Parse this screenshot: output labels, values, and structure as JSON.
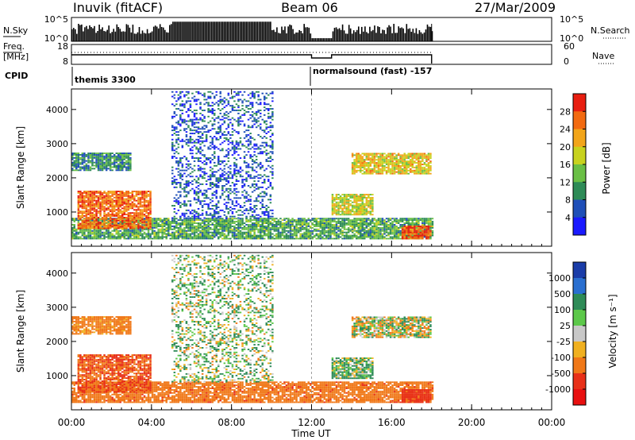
{
  "header": {
    "station": "Inuvik (fitACF)",
    "beam": "Beam 06",
    "date": "27/Mar/2009"
  },
  "sky_panel": {
    "left_label": "N.Sky",
    "right_label": "N.Search",
    "left_ticks": [
      "10^5",
      "10^0"
    ],
    "right_ticks": [
      "10^5",
      "10^0"
    ]
  },
  "freq_panel": {
    "left_label_1": "Freq.",
    "left_label_2": "[MHz]",
    "right_label": "Nave",
    "left_ticks": [
      "18",
      "8"
    ],
    "right_ticks": [
      "60",
      "0"
    ]
  },
  "cpid": {
    "label": "CPID",
    "segments": [
      {
        "text": "themis 3300",
        "start_hour": 0
      },
      {
        "text": "normalsound (fast) -157",
        "start_hour": 12
      }
    ]
  },
  "power_panel": {
    "ylabel": "Slant Range [km]",
    "yticks": [
      "1000",
      "2000",
      "3000",
      "4000"
    ],
    "colorbar_label": "Power [dB]",
    "colorbar_ticks": [
      "4",
      "8",
      "12",
      "16",
      "20",
      "24",
      "28"
    ],
    "colors": [
      "#1a1aff",
      "#1f4fb8",
      "#2e8b57",
      "#6abf45",
      "#c8d21e",
      "#f2a51a",
      "#f26a10",
      "#e81e10"
    ]
  },
  "velocity_panel": {
    "ylabel": "Slant Range [km]",
    "yticks": [
      "1000",
      "2000",
      "3000",
      "4000"
    ],
    "colorbar_label": "Velocity [m s⁻¹]",
    "colorbar_ticks": [
      "1000",
      "500",
      "100",
      "25",
      "-25",
      "-100",
      "-500",
      "-1000"
    ],
    "colors": [
      "#1a3ca8",
      "#2a6fd0",
      "#2e8b57",
      "#5cc84a",
      "#c8c8c8",
      "#f0b020",
      "#f07818",
      "#e83018",
      "#e81010"
    ]
  },
  "time_axis": {
    "label": "Time UT",
    "ticks": [
      "00:00",
      "04:00",
      "08:00",
      "12:00",
      "16:00",
      "20:00",
      "00:00"
    ]
  },
  "chart_data": {
    "type": "heatmap",
    "title": "Inuvik (fitACF) Beam 06 27/Mar/2009",
    "xlabel": "Time UT",
    "ylabel": "Slant Range [km]",
    "xlim_hours": [
      0,
      24
    ],
    "ylim_km": [
      200,
      4500
    ],
    "data_end_hour": 18,
    "power_scale_db": [
      0,
      32
    ],
    "velocity_scale_ms": [
      -1000,
      1000
    ],
    "regions": [
      {
        "name": "near-range band",
        "t_start": 0,
        "t_end": 18,
        "r_start": 200,
        "r_end": 800,
        "power_db": 12,
        "velocity_ms": -200
      },
      {
        "name": "early-morning patch",
        "t_start": 0.3,
        "t_end": 4.0,
        "r_start": 500,
        "r_end": 1600,
        "power_db": 26,
        "velocity_ms": -300
      },
      {
        "name": "high-range sparse echoes",
        "t_start": 5.0,
        "t_end": 10.0,
        "r_start": 800,
        "r_end": 4500,
        "power_db": 6,
        "velocity_ms": 40
      },
      {
        "name": "late near-range strong",
        "t_start": 16.5,
        "t_end": 18.0,
        "r_start": 200,
        "r_end": 600,
        "power_db": 28,
        "velocity_ms": -400
      },
      {
        "name": "afternoon high patch",
        "t_start": 14.0,
        "t_end": 18.0,
        "r_start": 2100,
        "r_end": 2700,
        "power_db": 20,
        "velocity_ms": 0
      },
      {
        "name": "afternoon mid patch",
        "t_start": 13.0,
        "t_end": 15.0,
        "r_start": 900,
        "r_end": 1500,
        "power_db": 18,
        "velocity_ms": 60
      },
      {
        "name": "early high patch",
        "t_start": 0.0,
        "t_end": 3.0,
        "r_start": 2200,
        "r_end": 2700,
        "power_db": 10,
        "velocity_ms": -150
      }
    ]
  }
}
